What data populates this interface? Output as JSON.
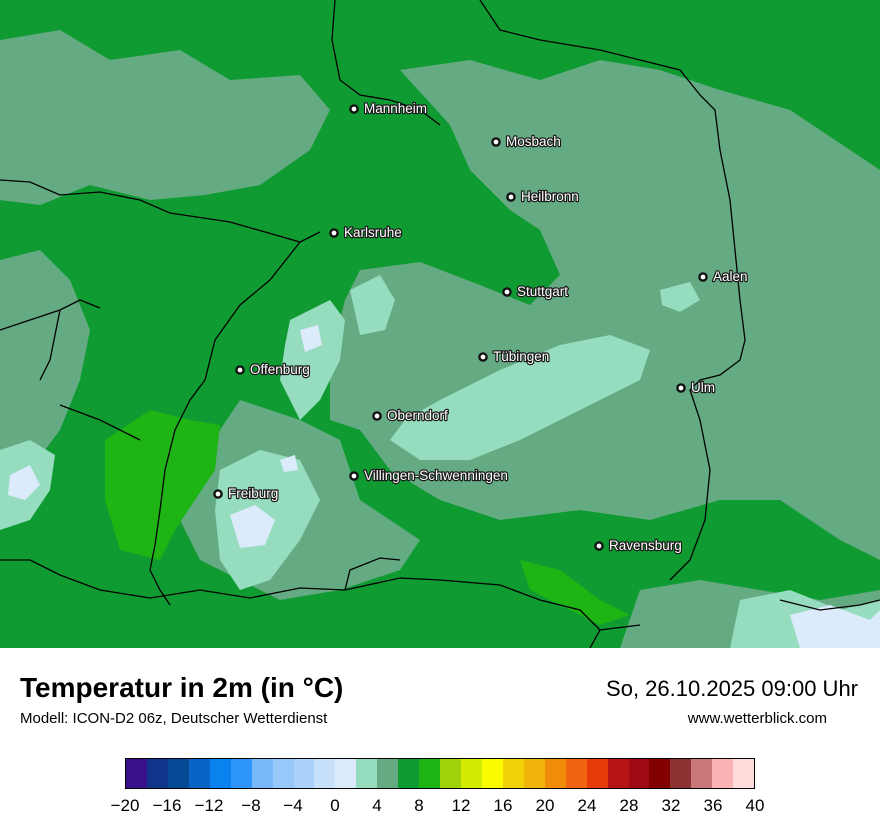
{
  "title": "Temperatur in 2m (in °C)",
  "subtitle": "Modell: ICON-D2 06z, Deutscher Wetterdienst",
  "datetime": "So, 26.10.2025 09:00 Uhr",
  "website": "www.wetterblick.com",
  "cities": [
    {
      "name": "Mannheim"
    },
    {
      "name": "Mosbach"
    },
    {
      "name": "Heilbronn"
    },
    {
      "name": "Karlsruhe"
    },
    {
      "name": "Aalen"
    },
    {
      "name": "Stuttgart"
    },
    {
      "name": "Tübingen"
    },
    {
      "name": "Offenburg"
    },
    {
      "name": "Ulm"
    },
    {
      "name": "Oberndorf"
    },
    {
      "name": "Villingen-Schwenningen"
    },
    {
      "name": "Freiburg"
    },
    {
      "name": "Ravensburg"
    }
  ],
  "legend": {
    "colors": [
      "#3a0f8c",
      "#10348a",
      "#064a96",
      "#0a64c8",
      "#0a82f0",
      "#2e96fa",
      "#78b9fa",
      "#96c8fa",
      "#aad2fa",
      "#c8e1fa",
      "#dcebfc",
      "#96dcbe",
      "#64aa82",
      "#0f9b32",
      "#1eb414",
      "#a0d20a",
      "#d2eb00",
      "#fafa00",
      "#f0d20a",
      "#f0b40a",
      "#f08c0a",
      "#f06414",
      "#e63c0a",
      "#b41414",
      "#a00a14",
      "#820000",
      "#8c3232",
      "#c87878",
      "#fab4b4",
      "#ffdcdc"
    ],
    "tick_labels": [
      "−20",
      "−16",
      "−12",
      "−8",
      "−4",
      "0",
      "4",
      "8",
      "12",
      "16",
      "20",
      "24",
      "28",
      "32",
      "36",
      "40"
    ],
    "min": -20,
    "max": 40
  }
}
